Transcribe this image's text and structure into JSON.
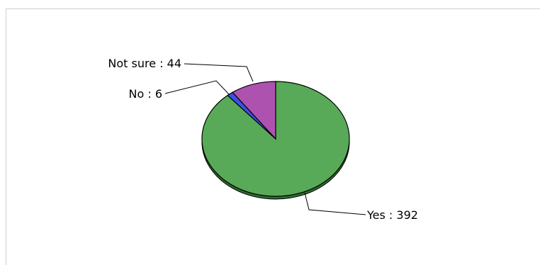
{
  "chart_data": {
    "type": "pie",
    "title": "",
    "slices": [
      {
        "label": "Yes",
        "value": 392,
        "text": "Yes : 392",
        "color": "#58AA58"
      },
      {
        "label": "No",
        "value": 6,
        "text": "No : 6",
        "color": "#3A53E6"
      },
      {
        "label": "Not sure",
        "value": 44,
        "text": "Not sure : 44",
        "color": "#AE52B0"
      }
    ],
    "legend": "none"
  }
}
